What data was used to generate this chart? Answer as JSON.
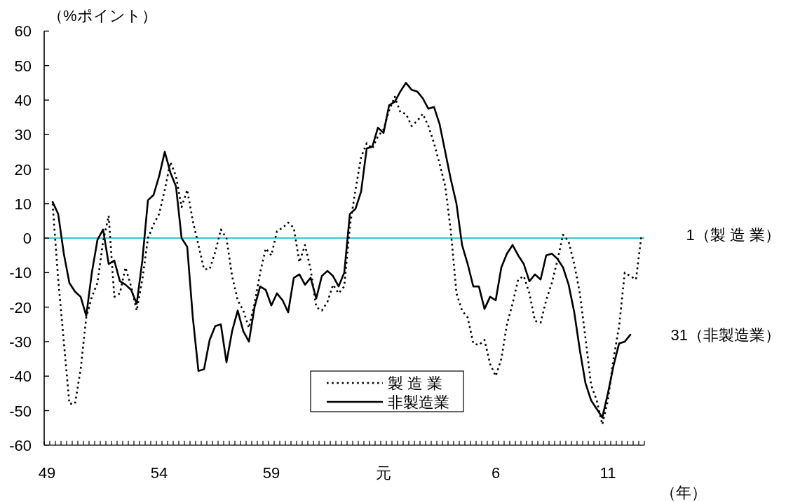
{
  "chart_data": {
    "type": "line",
    "ylabel": "（%ポイント）",
    "xlabel": "（年）",
    "categories": [
      "49",
      null,
      null,
      null,
      null,
      null,
      null,
      null,
      null,
      null,
      null,
      null,
      null,
      null,
      null,
      null,
      null,
      null,
      null,
      null,
      "54",
      null,
      null,
      null,
      null,
      null,
      null,
      null,
      null,
      null,
      null,
      null,
      null,
      null,
      null,
      null,
      null,
      null,
      null,
      null,
      "59",
      null,
      null,
      null,
      null,
      null,
      null,
      null,
      null,
      null,
      null,
      null,
      null,
      null,
      null,
      null,
      null,
      null,
      null,
      null,
      "元",
      null,
      null,
      null,
      null,
      null,
      null,
      null,
      null,
      null,
      null,
      null,
      null,
      null,
      null,
      null,
      null,
      null,
      null,
      null,
      "6",
      null,
      null,
      null,
      null,
      null,
      null,
      null,
      null,
      null,
      null,
      null,
      null,
      null,
      null,
      null,
      null,
      null,
      null,
      null,
      "11",
      null,
      null,
      null,
      null,
      null,
      null
    ],
    "series": [
      {
        "name": "製 造 業",
        "color": "#000000",
        "line_style": "dotted",
        "values": [
          null,
          10,
          -12,
          -30,
          -48,
          -48,
          -38,
          -23,
          -17,
          -13,
          -1,
          6.5,
          -17,
          -16,
          -8.5,
          -14,
          -21,
          -12,
          0,
          4,
          7,
          14,
          22,
          18,
          9,
          14,
          5,
          -2,
          -9,
          -9,
          -4,
          2.5,
          0,
          -11,
          -18,
          -21,
          -26,
          -19,
          -10,
          -3,
          -5,
          2,
          3,
          4.5,
          3,
          -7,
          -2,
          -9,
          -20,
          -21,
          -18.5,
          -13.5,
          -16,
          -14,
          3.5,
          14,
          23.5,
          27.5,
          26,
          29.5,
          31.5,
          37,
          41,
          36.5,
          36,
          32.5,
          34,
          36,
          32.5,
          27.5,
          21.5,
          15,
          2,
          -16,
          -21,
          -23,
          -30.5,
          -31,
          -29.5,
          -36.5,
          -40,
          -35,
          -25,
          -19,
          -12,
          -11,
          -16,
          -24,
          -24.5,
          -18,
          -13,
          -6.5,
          1,
          -1,
          -7.5,
          -16,
          -29,
          -42.5,
          -47,
          -54,
          -47,
          -35,
          -25.5,
          -10,
          -11,
          -12,
          1
        ]
      },
      {
        "name": "非製造業",
        "color": "#000000",
        "line_style": "solid",
        "values": [
          null,
          10.5,
          7,
          -4.5,
          -13,
          -15.5,
          -17,
          -22.5,
          -10,
          -0.5,
          2.5,
          -7.5,
          -6.5,
          -12.5,
          -13.5,
          -15,
          -19,
          -6.5,
          11,
          12.5,
          18,
          25,
          19,
          15,
          0,
          -2.5,
          -23,
          -38.5,
          -38,
          -29.5,
          -25.5,
          -25,
          -36,
          -27,
          -21,
          -27,
          -30,
          -20,
          -14,
          -15,
          -19.5,
          -16,
          -18,
          -21.5,
          -11.5,
          -10.5,
          -13.5,
          -11.5,
          -17.5,
          -11,
          -9.5,
          -11,
          -14,
          -10,
          7,
          8.5,
          13.5,
          26,
          26.5,
          32,
          30.5,
          38.5,
          39.5,
          42.5,
          45,
          43,
          42.5,
          40.5,
          37.5,
          38,
          33,
          25,
          17,
          10,
          -2,
          -7.5,
          -14,
          -14,
          -20.5,
          -17,
          -18,
          -8.5,
          -4.5,
          -2,
          -5,
          -7.5,
          -12.5,
          -10.5,
          -12,
          -5,
          -4.5,
          -6,
          -8.5,
          -13.5,
          -21.5,
          -32.5,
          -42,
          -47,
          -49.5,
          -52,
          -45,
          -37,
          -30.5,
          -30,
          -28,
          null,
          null
        ]
      }
    ],
    "ylim": [
      -60,
      60
    ],
    "yticks": [
      -60,
      -50,
      -40,
      -30,
      -20,
      -10,
      0,
      10,
      20,
      30,
      40,
      50,
      60
    ],
    "ref_lines": [
      {
        "axis": "y",
        "value": 0,
        "color": "#33cccc"
      }
    ],
    "legend": "bottom",
    "annotations": [
      "1（製 造 業）",
      "31（非製造業）"
    ]
  }
}
